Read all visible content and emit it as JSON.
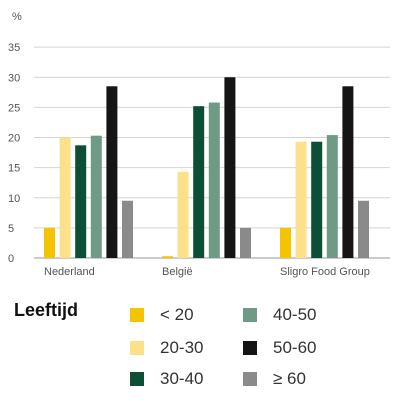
{
  "chart_data": {
    "type": "bar",
    "unit_label": "%",
    "categories": [
      "Nederland",
      "België",
      "Sligro Food Group"
    ],
    "series": [
      {
        "name": "< 20",
        "color": "#f5c400",
        "values": [
          5,
          0.3,
          5
        ]
      },
      {
        "name": "20-30",
        "color": "#fde08a",
        "values": [
          20,
          14.3,
          19.3
        ]
      },
      {
        "name": "30-40",
        "color": "#0d4f36",
        "values": [
          18.7,
          25.2,
          19.3
        ]
      },
      {
        "name": "40-50",
        "color": "#6f9a85",
        "values": [
          20.3,
          25.8,
          20.4
        ]
      },
      {
        "name": "50-60",
        "color": "#151515",
        "values": [
          28.5,
          30,
          28.5
        ]
      },
      {
        "name": "≥ 60",
        "color": "#8a8a8a",
        "values": [
          9.5,
          5,
          9.5
        ]
      }
    ],
    "ylim": [
      0,
      40
    ],
    "yticks": [
      0,
      5,
      10,
      15,
      20,
      25,
      30,
      35
    ],
    "grid": true,
    "legend_title": "Leeftijd",
    "legend_placement": "bottom"
  }
}
